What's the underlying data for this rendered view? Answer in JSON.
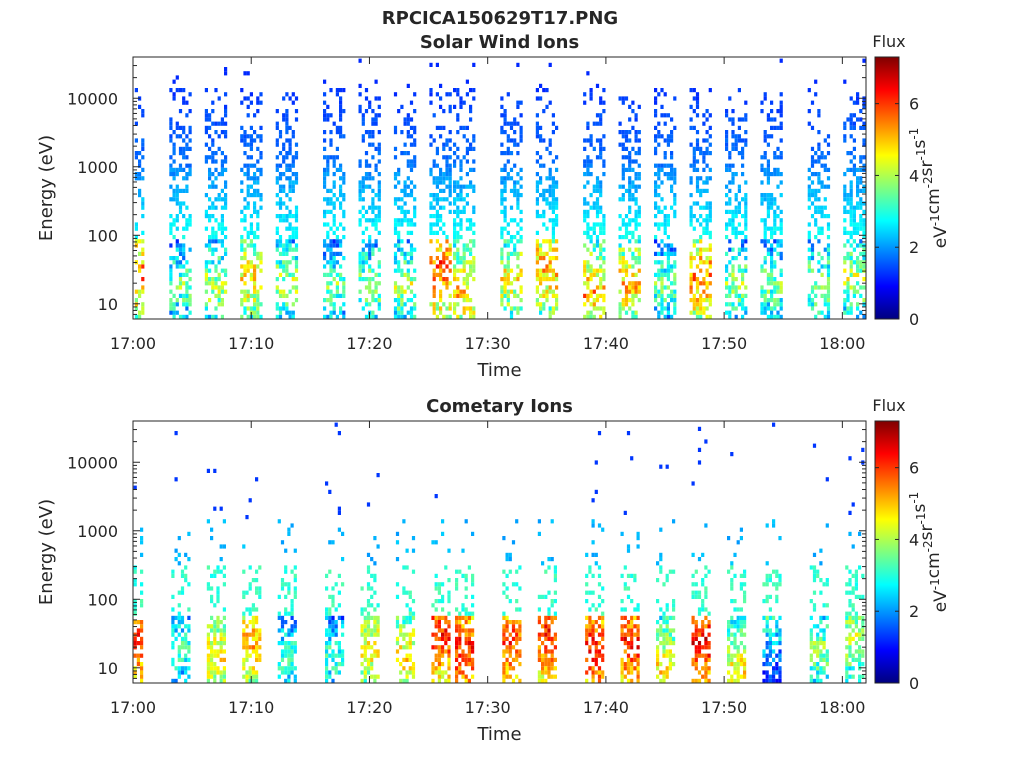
{
  "figure": {
    "title": "RPCICA150629T17.PNG"
  },
  "colors": {
    "colormap": [
      "#00007f",
      "#0000ff",
      "#007fff",
      "#00ffff",
      "#7fff7f",
      "#ffff00",
      "#ff7f00",
      "#ff0000",
      "#7f0000"
    ],
    "axis": "#262626",
    "background": "#ffffff"
  },
  "chart_data": [
    {
      "type": "heatmap",
      "title": "Solar Wind Ions",
      "xlabel": "Time",
      "ylabel": "Energy (eV)",
      "xticks": [
        "17:00",
        "17:10",
        "17:20",
        "17:30",
        "17:40",
        "17:50",
        "18:00"
      ],
      "xlim": [
        "17:00",
        "18:02"
      ],
      "yscale": "log",
      "ylim": [
        6,
        40000
      ],
      "yticks": [
        10,
        100,
        1000,
        10000
      ],
      "ytick_labels": [
        "10",
        "100",
        "1000",
        "10000"
      ],
      "colorbar": {
        "title": "Flux",
        "label": "eV-1cm-2sr-1s-1",
        "range": [
          0,
          7.3
        ],
        "ticks": [
          "0",
          "2",
          "4",
          "6"
        ]
      },
      "sweep_period_min": 3.3,
      "sweeps": [
        {
          "t": "17:00",
          "peak_energy_eV": 30,
          "peak_flux": 6.5
        },
        {
          "t": "17:04",
          "peak_energy_eV": 20,
          "peak_flux": 4.5
        },
        {
          "t": "17:07",
          "peak_energy_eV": 20,
          "peak_flux": 5.0
        },
        {
          "t": "17:10",
          "peak_energy_eV": 25,
          "peak_flux": 5.8
        },
        {
          "t": "17:13",
          "peak_energy_eV": 20,
          "peak_flux": 5.0
        },
        {
          "t": "17:17",
          "peak_energy_eV": 20,
          "peak_flux": 4.5
        },
        {
          "t": "17:20",
          "peak_energy_eV": 20,
          "peak_flux": 4.8
        },
        {
          "t": "17:23",
          "peak_energy_eV": 20,
          "peak_flux": 5.0
        },
        {
          "t": "17:26",
          "peak_energy_eV": 35,
          "peak_flux": 6.8
        },
        {
          "t": "17:28",
          "peak_energy_eV": 15,
          "peak_flux": 6.0
        },
        {
          "t": "17:32",
          "peak_energy_eV": 25,
          "peak_flux": 5.5
        },
        {
          "t": "17:35",
          "peak_energy_eV": 35,
          "peak_flux": 6.2
        },
        {
          "t": "17:39",
          "peak_energy_eV": 15,
          "peak_flux": 6.2
        },
        {
          "t": "17:42",
          "peak_energy_eV": 20,
          "peak_flux": 6.0
        },
        {
          "t": "17:45",
          "peak_energy_eV": 20,
          "peak_flux": 4.5
        },
        {
          "t": "17:48",
          "peak_energy_eV": 25,
          "peak_flux": 6.5
        },
        {
          "t": "17:51",
          "peak_energy_eV": 20,
          "peak_flux": 4.8
        },
        {
          "t": "17:54",
          "peak_energy_eV": 20,
          "peak_flux": 4.5
        },
        {
          "t": "17:58",
          "peak_energy_eV": 20,
          "peak_flux": 4.8
        },
        {
          "t": "18:01",
          "peak_energy_eV": 25,
          "peak_flux": 5.0
        }
      ]
    },
    {
      "type": "heatmap",
      "title": "Cometary Ions",
      "xlabel": "Time",
      "ylabel": "Energy (eV)",
      "xticks": [
        "17:00",
        "17:10",
        "17:20",
        "17:30",
        "17:40",
        "17:50",
        "18:00"
      ],
      "xlim": [
        "17:00",
        "18:02"
      ],
      "yscale": "log",
      "ylim": [
        6,
        40000
      ],
      "yticks": [
        10,
        100,
        1000,
        10000
      ],
      "ytick_labels": [
        "10",
        "100",
        "1000",
        "10000"
      ],
      "colorbar": {
        "title": "Flux",
        "label": "eV-1cm-2sr-1s-1",
        "range": [
          0,
          7.3
        ],
        "ticks": [
          "0",
          "2",
          "4",
          "6"
        ]
      },
      "sweep_period_min": 3.3,
      "sweeps": [
        {
          "t": "17:00",
          "peak_energy_eV": 30,
          "peak_flux": 6.8
        },
        {
          "t": "17:04",
          "peak_energy_eV": 20,
          "peak_flux": 4.0
        },
        {
          "t": "17:07",
          "peak_energy_eV": 15,
          "peak_flux": 5.5
        },
        {
          "t": "17:10",
          "peak_energy_eV": 25,
          "peak_flux": 6.0
        },
        {
          "t": "17:13",
          "peak_energy_eV": 15,
          "peak_flux": 4.0
        },
        {
          "t": "17:17",
          "peak_energy_eV": 15,
          "peak_flux": 4.0
        },
        {
          "t": "17:20",
          "peak_energy_eV": 20,
          "peak_flux": 5.5
        },
        {
          "t": "17:23",
          "peak_energy_eV": 15,
          "peak_flux": 5.5
        },
        {
          "t": "17:26",
          "peak_energy_eV": 35,
          "peak_flux": 7.0
        },
        {
          "t": "17:28",
          "peak_energy_eV": 20,
          "peak_flux": 7.0
        },
        {
          "t": "17:32",
          "peak_energy_eV": 25,
          "peak_flux": 6.8
        },
        {
          "t": "17:35",
          "peak_energy_eV": 35,
          "peak_flux": 7.0
        },
        {
          "t": "17:39",
          "peak_energy_eV": 20,
          "peak_flux": 7.0
        },
        {
          "t": "17:42",
          "peak_energy_eV": 25,
          "peak_flux": 7.0
        },
        {
          "t": "17:45",
          "peak_energy_eV": 10,
          "peak_flux": 5.5
        },
        {
          "t": "17:48",
          "peak_energy_eV": 25,
          "peak_flux": 7.2
        },
        {
          "t": "17:51",
          "peak_energy_eV": 10,
          "peak_flux": 5.5
        },
        {
          "t": "17:54",
          "peak_energy_eV": 100,
          "peak_flux": 4.5
        },
        {
          "t": "17:58",
          "peak_energy_eV": 20,
          "peak_flux": 4.5
        },
        {
          "t": "18:01",
          "peak_energy_eV": 30,
          "peak_flux": 5.0
        }
      ]
    }
  ]
}
